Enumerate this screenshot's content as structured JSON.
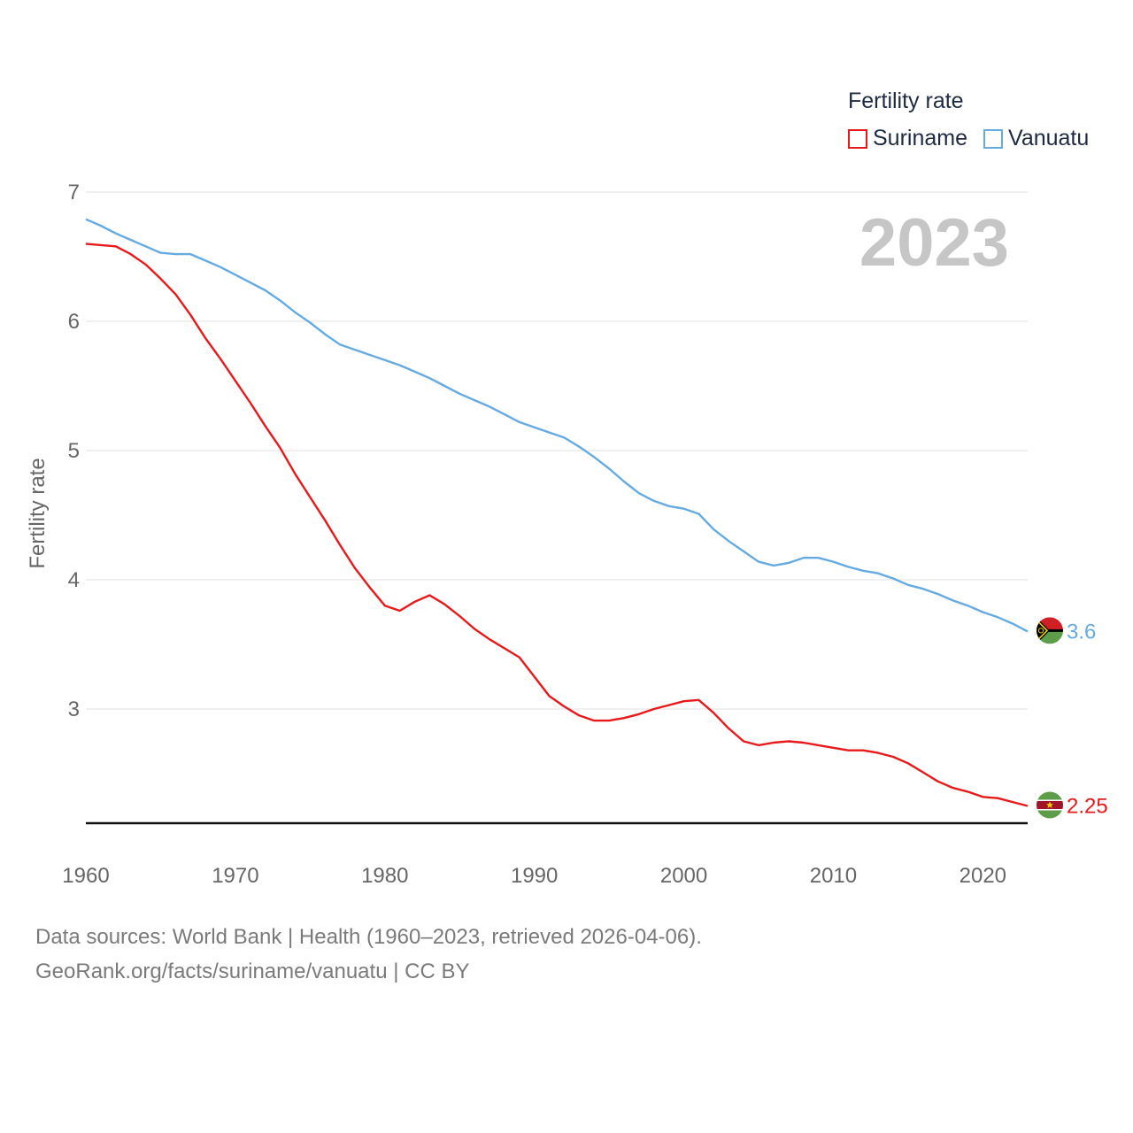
{
  "legend": {
    "title": "Fertility rate",
    "items": [
      {
        "label": "Suriname",
        "color": "#e8191a"
      },
      {
        "label": "Vanuatu",
        "color": "#66aae2"
      }
    ]
  },
  "year_watermark": "2023",
  "footer": {
    "line1": "Data sources: World Bank | Health (1960–2023, retrieved 2026-04-06).",
    "line2": "GeoRank.org/facts/suriname/vanuatu | CC BY"
  },
  "chart_data": {
    "type": "line",
    "title": "",
    "xlabel": "",
    "ylabel": "Fertility rate",
    "xlim": [
      1960,
      2023
    ],
    "ylim": [
      2.1,
      7
    ],
    "x_ticks": [
      1960,
      1970,
      1980,
      1990,
      2000,
      2010,
      2020
    ],
    "y_ticks": [
      3,
      4,
      5,
      6,
      7
    ],
    "grid": true,
    "legend_position": "top-right",
    "x": [
      1960,
      1961,
      1962,
      1963,
      1964,
      1965,
      1966,
      1967,
      1968,
      1969,
      1970,
      1971,
      1972,
      1973,
      1974,
      1975,
      1976,
      1977,
      1978,
      1979,
      1980,
      1981,
      1982,
      1983,
      1984,
      1985,
      1986,
      1987,
      1988,
      1989,
      1990,
      1991,
      1992,
      1993,
      1994,
      1995,
      1996,
      1997,
      1998,
      1999,
      2000,
      2001,
      2002,
      2003,
      2004,
      2005,
      2006,
      2007,
      2008,
      2009,
      2010,
      2011,
      2012,
      2013,
      2014,
      2015,
      2016,
      2017,
      2018,
      2019,
      2020,
      2021,
      2022,
      2023
    ],
    "series": [
      {
        "name": "Suriname",
        "color": "#e8191a",
        "end_label": "2.25",
        "flag": "suriname-flag",
        "values": [
          6.6,
          6.59,
          6.58,
          6.52,
          6.44,
          6.33,
          6.21,
          6.05,
          5.87,
          5.71,
          5.54,
          5.37,
          5.19,
          5.02,
          4.82,
          4.64,
          4.46,
          4.27,
          4.09,
          3.94,
          3.8,
          3.76,
          3.83,
          3.88,
          3.81,
          3.72,
          3.62,
          3.54,
          3.47,
          3.4,
          3.25,
          3.1,
          3.02,
          2.95,
          2.91,
          2.91,
          2.93,
          2.96,
          3.0,
          3.03,
          3.06,
          3.07,
          2.97,
          2.85,
          2.75,
          2.72,
          2.74,
          2.75,
          2.74,
          2.72,
          2.7,
          2.68,
          2.68,
          2.66,
          2.63,
          2.58,
          2.51,
          2.44,
          2.39,
          2.36,
          2.32,
          2.31,
          2.28,
          2.25
        ]
      },
      {
        "name": "Vanuatu",
        "color": "#66aae2",
        "end_label": "3.6",
        "flag": "vanuatu-flag",
        "values": [
          6.79,
          6.74,
          6.68,
          6.63,
          6.58,
          6.53,
          6.52,
          6.52,
          6.47,
          6.42,
          6.36,
          6.3,
          6.24,
          6.16,
          6.07,
          5.99,
          5.9,
          5.82,
          5.78,
          5.74,
          5.7,
          5.66,
          5.61,
          5.56,
          5.5,
          5.44,
          5.39,
          5.34,
          5.28,
          5.22,
          5.18,
          5.14,
          5.1,
          5.03,
          4.95,
          4.86,
          4.76,
          4.67,
          4.61,
          4.57,
          4.55,
          4.51,
          4.39,
          4.3,
          4.22,
          4.14,
          4.11,
          4.13,
          4.17,
          4.17,
          4.14,
          4.1,
          4.07,
          4.05,
          4.01,
          3.96,
          3.93,
          3.89,
          3.84,
          3.8,
          3.75,
          3.71,
          3.66,
          3.6
        ]
      }
    ]
  }
}
